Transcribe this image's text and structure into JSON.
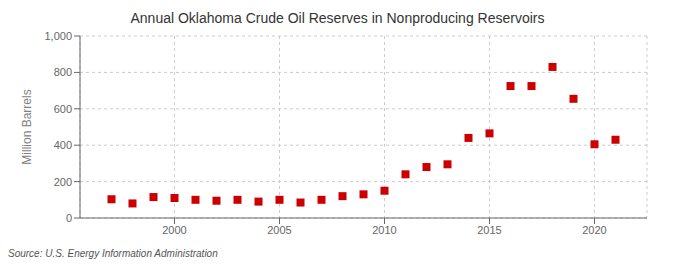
{
  "chart_data": {
    "type": "scatter",
    "title": "Annual Oklahoma Crude Oil Reserves in Nonproducing Reservoirs",
    "ylabel": "Million Barrels",
    "annotation": "Source: U.S. Energy Information Administration",
    "x": [
      1997,
      1998,
      1999,
      2000,
      2001,
      2002,
      2003,
      2004,
      2005,
      2006,
      2007,
      2008,
      2009,
      2010,
      2011,
      2012,
      2013,
      2014,
      2015,
      2016,
      2017,
      2018,
      2019,
      2020,
      2021
    ],
    "values": [
      103,
      80,
      115,
      110,
      100,
      95,
      100,
      90,
      100,
      85,
      100,
      120,
      130,
      150,
      240,
      280,
      295,
      440,
      465,
      725,
      725,
      830,
      655,
      405,
      430
    ],
    "color": "#cc0000",
    "marker": "square",
    "xlim": [
      1995.5,
      2022.5
    ],
    "xticks": [
      2000,
      2005,
      2010,
      2015,
      2020
    ],
    "ylim": [
      0,
      1000
    ],
    "yticks": [
      0,
      200,
      400,
      600,
      800,
      {
        "value": 1000,
        "label": "1,000"
      }
    ],
    "grid": true
  }
}
